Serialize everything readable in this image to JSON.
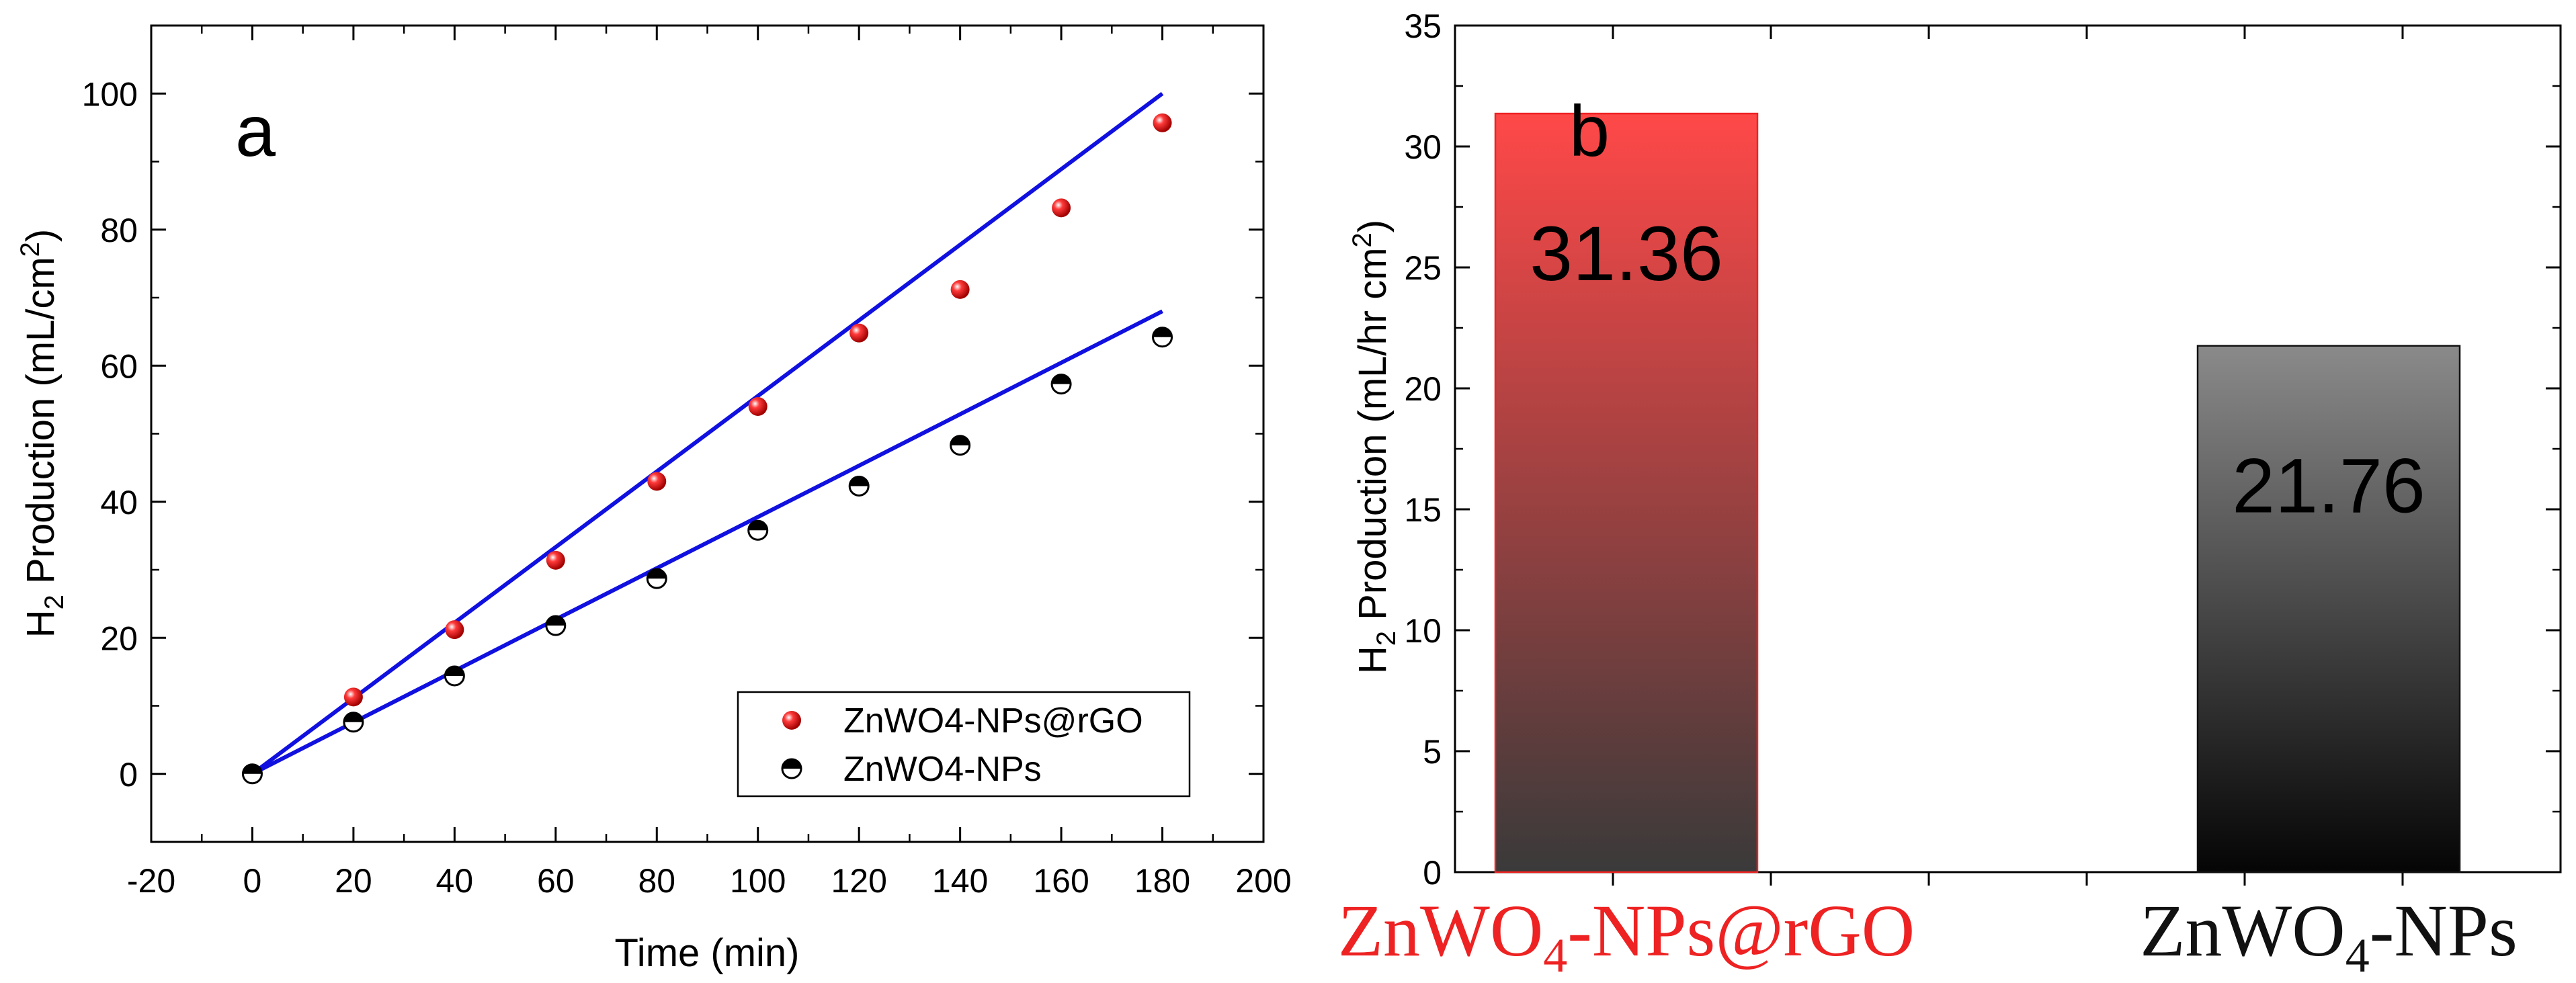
{
  "chart_data": [
    {
      "type": "scatter",
      "panel_label": "a",
      "xlabel": "Time (min)",
      "ylabel": {
        "prefix": "H",
        "sub": "2",
        "mid": " Production (mL/cm",
        "sup": "2",
        "suffix": ")"
      },
      "xlim": [
        -20,
        200
      ],
      "ylim": [
        -10,
        110
      ],
      "xticks": [
        -20,
        0,
        20,
        40,
        60,
        80,
        100,
        120,
        140,
        160,
        180,
        200
      ],
      "yticks": [
        0,
        20,
        40,
        60,
        80,
        100
      ],
      "series": [
        {
          "name": "ZnWO4-NPs@rGO",
          "marker": "filled-sphere",
          "color": "#ee1111",
          "x": [
            0,
            20,
            40,
            60,
            80,
            100,
            120,
            140,
            160,
            180
          ],
          "y": [
            0,
            11.3,
            21.2,
            31.4,
            43.0,
            54.0,
            64.8,
            71.2,
            83.2,
            95.7
          ],
          "fit": {
            "x": [
              0,
              180
            ],
            "y": [
              0,
              100
            ]
          }
        },
        {
          "name": "ZnWO4-NPs",
          "marker": "half-filled-circle",
          "color": "#000000",
          "x": [
            0,
            20,
            40,
            60,
            80,
            100,
            120,
            140,
            160,
            180
          ],
          "y": [
            0,
            7.6,
            14.4,
            21.8,
            28.7,
            35.8,
            42.3,
            48.3,
            57.3,
            64.2
          ],
          "fit": {
            "x": [
              0,
              60,
              120,
              180
            ],
            "y": [
              0,
              22.7,
              45.3,
              68.0
            ]
          }
        }
      ],
      "fit_color": "#1010e0",
      "legend_position": "bottom-right"
    },
    {
      "type": "bar",
      "panel_label": "b",
      "xlabel": "",
      "ylabel": {
        "prefix": "H",
        "sub": "2",
        "mid": " Production (mL/hr cm",
        "sup": "2",
        "suffix": ")"
      },
      "ylim": [
        0,
        35
      ],
      "yticks": [
        0,
        5,
        10,
        15,
        20,
        25,
        30,
        35
      ],
      "categories": [
        {
          "pre": "ZnWO",
          "sub": "4",
          "post": "-NPs@rGO",
          "color": "#ee2222"
        },
        {
          "pre": "ZnWO",
          "sub": "4",
          "post": "-NPs",
          "color": "#111111"
        }
      ],
      "values": [
        31.36,
        21.76
      ],
      "value_labels": [
        "31.36",
        "21.76"
      ],
      "bar_gradients": [
        {
          "top": "#ff4848",
          "bottom": "#3a3a3a"
        },
        {
          "top": "#8a8a8a",
          "bottom": "#050505"
        }
      ]
    }
  ]
}
